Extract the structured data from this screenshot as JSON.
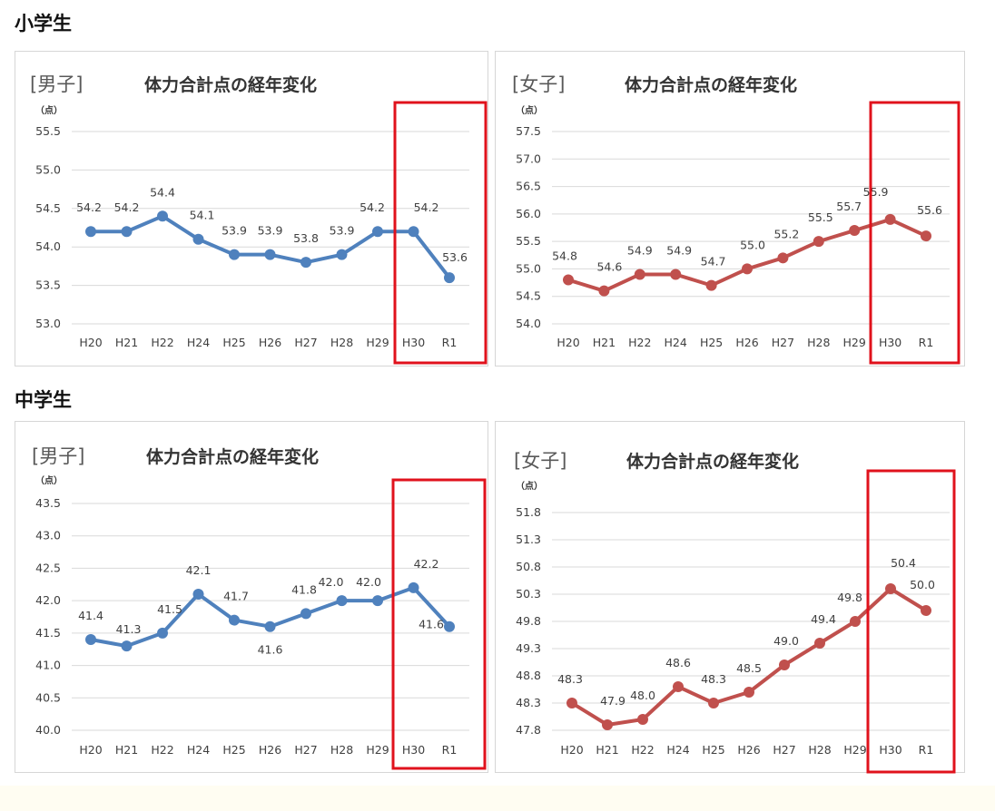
{
  "sections": {
    "elementary": "小学生",
    "junior_high": "中学生"
  },
  "colors": {
    "boys": "#4f81bd",
    "girls": "#c0504d",
    "highlight": "#e0121c"
  },
  "chart_data": [
    {
      "type": "line",
      "section": "小学生",
      "bracket_label": "[男子]",
      "title": "体力合計点の経年変化",
      "unit": "（点）",
      "categories": [
        "H20",
        "H21",
        "H22",
        "H24",
        "H25",
        "H26",
        "H27",
        "H28",
        "H29",
        "H30",
        "R1"
      ],
      "values": [
        54.2,
        54.2,
        54.4,
        54.1,
        53.9,
        53.9,
        53.8,
        53.9,
        54.2,
        54.2,
        53.6
      ],
      "data_labels": [
        "54.2",
        "54.2",
        "54.4",
        "54.1",
        "53.9",
        "53.9",
        "53.8",
        "53.9",
        "54.2",
        "54.2",
        "53.6"
      ],
      "yticks": [
        "53.0",
        "53.5",
        "54.0",
        "54.5",
        "55.0",
        "55.5"
      ],
      "ylim": [
        53.0,
        55.5
      ],
      "color": "#4f81bd",
      "highlight_categories": [
        "H30",
        "R1"
      ],
      "grid": true
    },
    {
      "type": "line",
      "section": "小学生",
      "bracket_label": "[女子]",
      "title": "体力合計点の経年変化",
      "unit": "（点）",
      "categories": [
        "H20",
        "H21",
        "H22",
        "H24",
        "H25",
        "H26",
        "H27",
        "H28",
        "H29",
        "H30",
        "R1"
      ],
      "values": [
        54.8,
        54.6,
        54.9,
        54.9,
        54.7,
        55.0,
        55.2,
        55.5,
        55.7,
        55.9,
        55.6
      ],
      "data_labels": [
        "54.8",
        "54.6",
        "54.9",
        "54.9",
        "54.7",
        "55.0",
        "55.2",
        "55.5",
        "55.7",
        "55.9",
        "55.6"
      ],
      "yticks": [
        "54.0",
        "54.5",
        "55.0",
        "55.5",
        "56.0",
        "56.5",
        "57.0",
        "57.5"
      ],
      "ylim": [
        54.0,
        57.5
      ],
      "color": "#c0504d",
      "highlight_categories": [
        "H30",
        "R1"
      ],
      "grid": true
    },
    {
      "type": "line",
      "section": "中学生",
      "bracket_label": "[男子]",
      "title": "体力合計点の経年変化",
      "unit": "（点）",
      "categories": [
        "H20",
        "H21",
        "H22",
        "H24",
        "H25",
        "H26",
        "H27",
        "H28",
        "H29",
        "H30",
        "R1"
      ],
      "values": [
        41.4,
        41.3,
        41.5,
        42.1,
        41.7,
        41.6,
        41.8,
        42.0,
        42.0,
        42.2,
        41.6
      ],
      "data_labels": [
        "41.4",
        "41.3",
        "41.5",
        "42.1",
        "41.7",
        "41.6",
        "41.8",
        "42.0",
        "42.0",
        "42.2",
        "41.6"
      ],
      "yticks": [
        "40.0",
        "40.5",
        "41.0",
        "41.5",
        "42.0",
        "42.5",
        "43.0",
        "43.5"
      ],
      "ylim": [
        40.0,
        43.5
      ],
      "color": "#4f81bd",
      "highlight_categories": [
        "H30",
        "R1"
      ],
      "grid": true
    },
    {
      "type": "line",
      "section": "中学生",
      "bracket_label": "[女子]",
      "title": "体力合計点の経年変化",
      "unit": "（点）",
      "categories": [
        "H20",
        "H21",
        "H22",
        "H24",
        "H25",
        "H26",
        "H27",
        "H28",
        "H29",
        "H30",
        "R1"
      ],
      "values": [
        48.3,
        47.9,
        48.0,
        48.6,
        48.3,
        48.5,
        49.0,
        49.4,
        49.8,
        50.4,
        50.0
      ],
      "data_labels": [
        "48.3",
        "47.9",
        "48.0",
        "48.6",
        "48.3",
        "48.5",
        "49.0",
        "49.4",
        "49.8",
        "50.4",
        "50.0"
      ],
      "yticks": [
        "47.8",
        "48.3",
        "48.8",
        "49.3",
        "49.8",
        "50.3",
        "50.8",
        "51.3",
        "51.8"
      ],
      "ylim": [
        47.8,
        51.8
      ],
      "color": "#c0504d",
      "highlight_categories": [
        "H30",
        "R1"
      ],
      "grid": true
    }
  ]
}
